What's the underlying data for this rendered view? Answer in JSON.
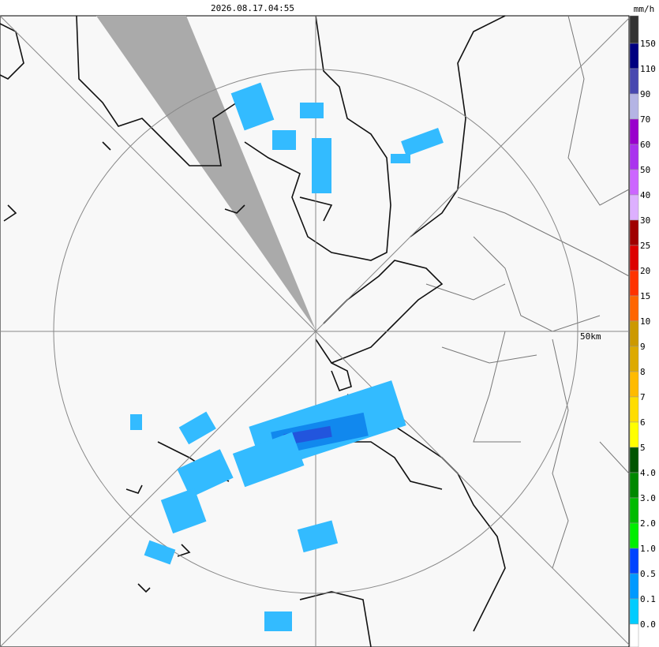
{
  "header": {
    "timestamp": "2026.08.17.04:55",
    "unit": "mm/h"
  },
  "map": {
    "range_label": "50km"
  },
  "legend": {
    "labels": [
      "150",
      "110",
      "90",
      "70",
      "60",
      "50",
      "40",
      "30",
      "25",
      "20",
      "15",
      "10",
      "9",
      "8",
      "7",
      "6",
      "5",
      "4.0",
      "3.0",
      "2.0",
      "1.0",
      "0.5",
      "0.1",
      "0.0"
    ],
    "colors": [
      "#333333",
      "#000080",
      "#4848b0",
      "#b4b4e4",
      "#9900cc",
      "#aa33ee",
      "#cc66ff",
      "#ddb0ff",
      "#a00000",
      "#dd0000",
      "#ff3300",
      "#ff6600",
      "#cc9900",
      "#ddaa00",
      "#ffbb00",
      "#ffdd00",
      "#ffff00",
      "#005500",
      "#008800",
      "#00bb00",
      "#00ee00",
      "#0044ff",
      "#0099ff",
      "#00ccff",
      "#ffffff"
    ]
  }
}
